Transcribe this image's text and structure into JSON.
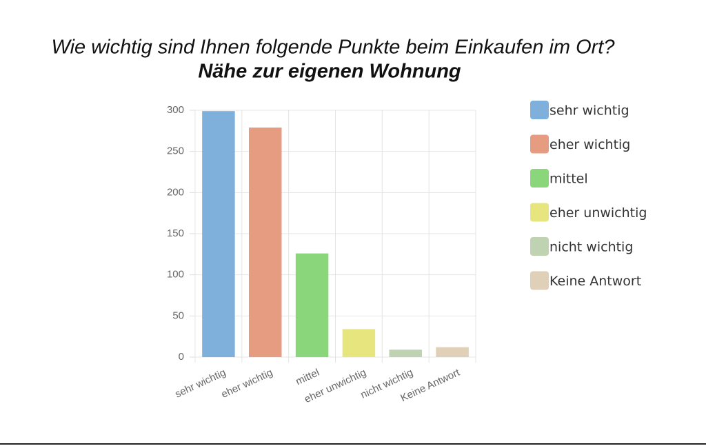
{
  "chart_data": {
    "type": "bar",
    "title": "Wie wichtig sind Ihnen folgende Punkte beim Einkaufen im Ort?",
    "subtitle": "Nähe zur eigenen Wohnung",
    "categories": [
      "sehr wichtig",
      "eher wichtig",
      "mittel",
      "eher unwichtig",
      "nicht wichtig",
      "Keine Antwort"
    ],
    "values": [
      299,
      279,
      126,
      34,
      9,
      12
    ],
    "colors": [
      "#7fb0dc",
      "#e59c80",
      "#8ad67a",
      "#e6e57e",
      "#bfd3b2",
      "#dfd0b7"
    ],
    "ylim": [
      0,
      300
    ],
    "yticks": [
      0,
      50,
      100,
      150,
      200,
      250,
      300
    ],
    "grid": true,
    "legend": "right"
  }
}
